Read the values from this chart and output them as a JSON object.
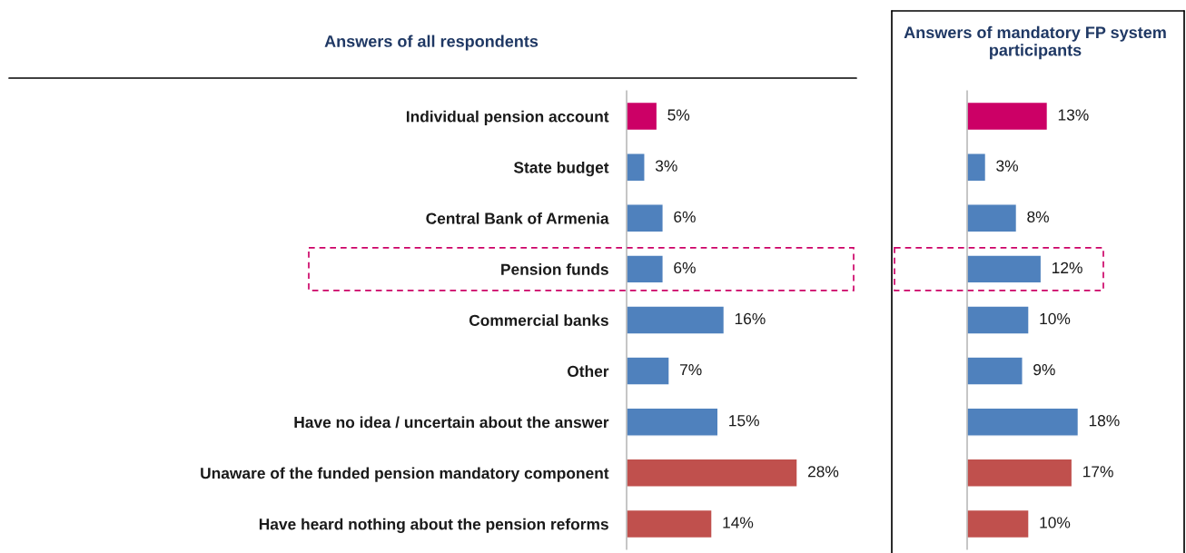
{
  "chart_data": [
    {
      "type": "bar",
      "orientation": "horizontal",
      "title": "Answers of all respondents",
      "data_labels": true,
      "value_labels": [
        "5%",
        "3%",
        "6%",
        "6%",
        "16%",
        "7%",
        "15%",
        "28%",
        "14%"
      ],
      "categories": [
        "Individual pension account",
        "State budget",
        "Central Bank of Armenia",
        "Pension funds",
        "Commercial banks",
        "Other",
        "Have no idea / uncertain about the answer",
        "Unaware of the funded pension mandatory component",
        "Have heard nothing about the pension reforms"
      ],
      "values": [
        5,
        3,
        6,
        6,
        16,
        7,
        15,
        28,
        14
      ],
      "colors": [
        "#cc0066",
        "#4f81bd",
        "#4f81bd",
        "#4f81bd",
        "#4f81bd",
        "#4f81bd",
        "#4f81bd",
        "#c0504d",
        "#c0504d"
      ],
      "grid": false,
      "legend": false
    },
    {
      "type": "bar",
      "orientation": "horizontal",
      "title": "Answers of mandatory FP system participants",
      "data_labels": true,
      "value_labels": [
        "13%",
        "3%",
        "8%",
        "12%",
        "10%",
        "9%",
        "18%",
        "17%",
        "10%"
      ],
      "categories": [
        null,
        null,
        null,
        null,
        null,
        null,
        null,
        null,
        null
      ],
      "values": [
        13,
        3,
        8,
        12,
        10,
        9,
        18,
        17,
        10
      ],
      "colors": [
        "#cc0066",
        "#4f81bd",
        "#4f81bd",
        "#4f81bd",
        "#4f81bd",
        "#4f81bd",
        "#4f81bd",
        "#c0504d",
        "#c0504d"
      ],
      "grid": false,
      "legend": false
    }
  ]
}
